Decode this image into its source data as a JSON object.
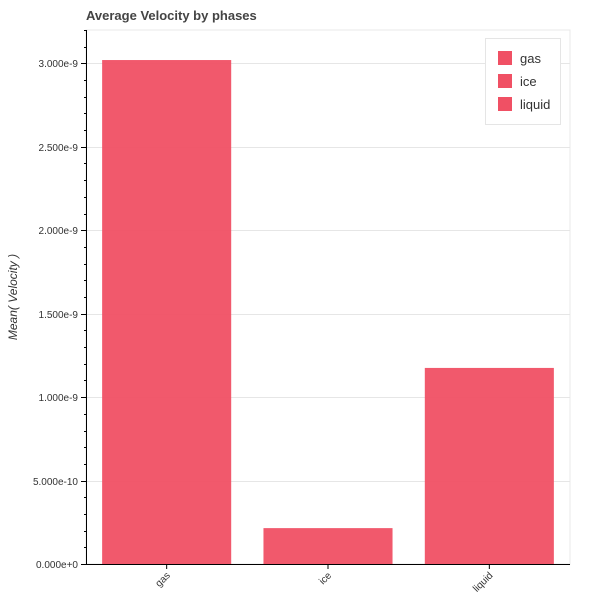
{
  "chart_data": {
    "type": "bar",
    "title": "Average Velocity by phases",
    "xlabel": "",
    "ylabel": "Mean( Velocity )",
    "categories": [
      "gas",
      "ice",
      "liquid"
    ],
    "values": [
      3.02e-09,
      2.15e-10,
      1.175e-09
    ],
    "ylim": [
      0,
      3.2e-09
    ],
    "yticks": [
      0,
      5e-10,
      1e-09,
      1.5e-09,
      2e-09,
      2.5e-09,
      3e-09
    ],
    "ytick_labels": [
      "0.000e+0",
      "5.000e-10",
      "1.000e-9",
      "1.500e-9",
      "2.000e-9",
      "2.500e-9",
      "3.000e-9"
    ],
    "grid": true,
    "legend_position": "top-right",
    "legend": [
      "gas",
      "ice",
      "liquid"
    ],
    "bar_color": "#f05064"
  }
}
